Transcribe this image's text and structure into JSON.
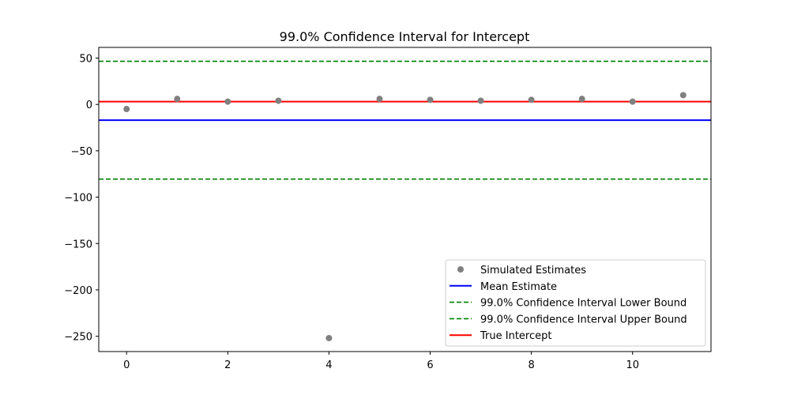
{
  "chart_data": {
    "type": "scatter",
    "title": "99.0% Confidence Interval for Intercept",
    "xlabel": "",
    "ylabel": "",
    "xlim": [
      -0.55,
      11.55
    ],
    "ylim": [
      -266.5,
      61.5
    ],
    "x_ticks": [
      0,
      2,
      4,
      6,
      8,
      10
    ],
    "y_ticks": [
      50,
      0,
      -50,
      -100,
      -150,
      -200,
      -250
    ],
    "y_tick_labels": [
      "50",
      "0",
      "−50",
      "−100",
      "−150",
      "−200",
      "−250"
    ],
    "grid": false,
    "legend_position": "lower-right",
    "series": [
      {
        "name": "Simulated Estimates",
        "kind": "points",
        "color": "#808080",
        "x": [
          0,
          1,
          2,
          3,
          4,
          5,
          6,
          7,
          8,
          9,
          10,
          11
        ],
        "y": [
          -5,
          6,
          3,
          4,
          -252,
          6,
          5,
          4,
          5,
          6,
          3,
          10
        ]
      },
      {
        "name": "Mean Estimate",
        "kind": "hline",
        "y": -17,
        "color": "#0000ff",
        "style": "solid"
      },
      {
        "name": "99.0% Confidence Interval Lower Bound",
        "kind": "hline",
        "y": -80.5,
        "color": "#008000",
        "style": "dashed"
      },
      {
        "name": "99.0% Confidence Interval Upper Bound",
        "kind": "hline",
        "y": 46.5,
        "color": "#008000",
        "style": "dashed"
      },
      {
        "name": "True Intercept",
        "kind": "hline",
        "y": 3,
        "color": "#ff0000",
        "style": "solid"
      }
    ]
  }
}
